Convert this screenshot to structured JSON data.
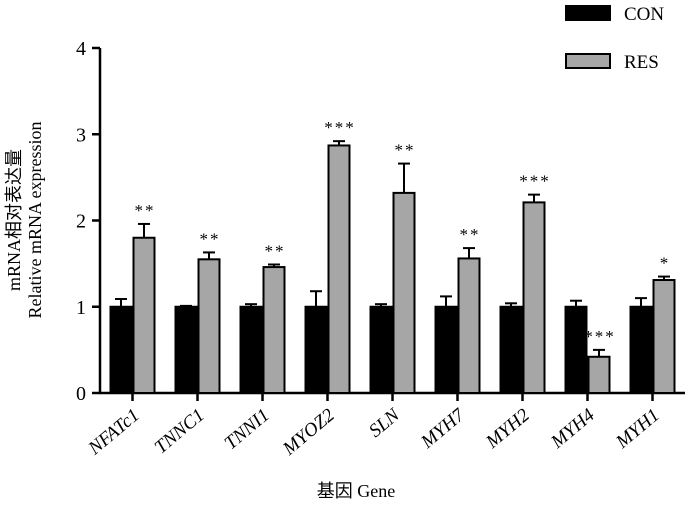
{
  "chart_data": {
    "type": "bar",
    "title": "",
    "ylabel_line1": "mRNA相对表达量",
    "ylabel_line2": "Relative mRNA expression",
    "xlabel": "基因 Gene",
    "ylim": [
      0,
      4
    ],
    "yticks": [
      "0",
      "1",
      "2",
      "3",
      "4"
    ],
    "grid": false,
    "legend_position": "top-right",
    "categories": [
      "NFATc1",
      "TNNC1",
      "TNNI1",
      "MYOZ2",
      "SLN",
      "MYH7",
      "MYH2",
      "MYH4",
      "MYH1"
    ],
    "series": [
      {
        "name": "CON",
        "color": "#000000",
        "values": [
          1.0,
          1.0,
          1.0,
          1.0,
          1.0,
          1.0,
          1.0,
          1.0,
          1.0
        ],
        "errors": [
          0.09,
          0.01,
          0.03,
          0.18,
          0.03,
          0.12,
          0.04,
          0.07,
          0.1
        ]
      },
      {
        "name": "RES",
        "color": "#a6a6a6",
        "values": [
          1.8,
          1.55,
          1.46,
          2.87,
          2.32,
          1.56,
          2.21,
          0.42,
          1.31
        ],
        "errors": [
          0.16,
          0.08,
          0.03,
          0.05,
          0.34,
          0.12,
          0.09,
          0.08,
          0.04
        ]
      }
    ],
    "significance": [
      "**",
      "**",
      "**",
      "***",
      "**",
      "**",
      "***",
      "***",
      "*"
    ]
  }
}
